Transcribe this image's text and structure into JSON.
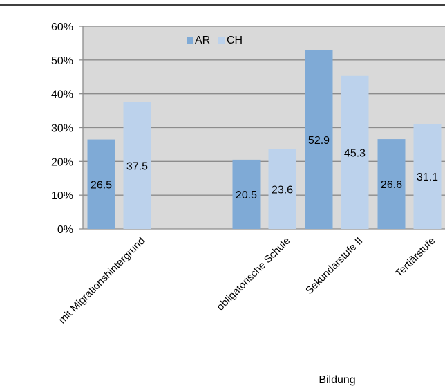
{
  "chart_data": {
    "type": "bar",
    "categories": [
      "mit Migrationshintergrund",
      "",
      "obligatorische Schule",
      "Sekundarstufe II",
      "Tertiärstufe"
    ],
    "series": [
      {
        "name": "AR",
        "color": "#7faad6",
        "values": [
          26.5,
          null,
          20.5,
          52.9,
          26.6
        ]
      },
      {
        "name": "CH",
        "color": "#bcd2ec",
        "values": [
          37.5,
          null,
          23.6,
          45.3,
          31.1
        ]
      }
    ],
    "data_labels": [
      [
        "26.5",
        "",
        "20.5",
        "52.9",
        "26.6"
      ],
      [
        "37.5",
        "",
        "23.6",
        "45.3",
        "31.1"
      ]
    ],
    "ylim": [
      0,
      60
    ],
    "yticks": [
      0,
      10,
      20,
      30,
      40,
      50,
      60
    ],
    "ytick_labels": [
      "0%",
      "10%",
      "20%",
      "30%",
      "40%",
      "50%",
      "60%"
    ],
    "xlabel": "Bildung",
    "grid": true,
    "plot_background": "#d9d9d9",
    "legend_position": "top"
  }
}
